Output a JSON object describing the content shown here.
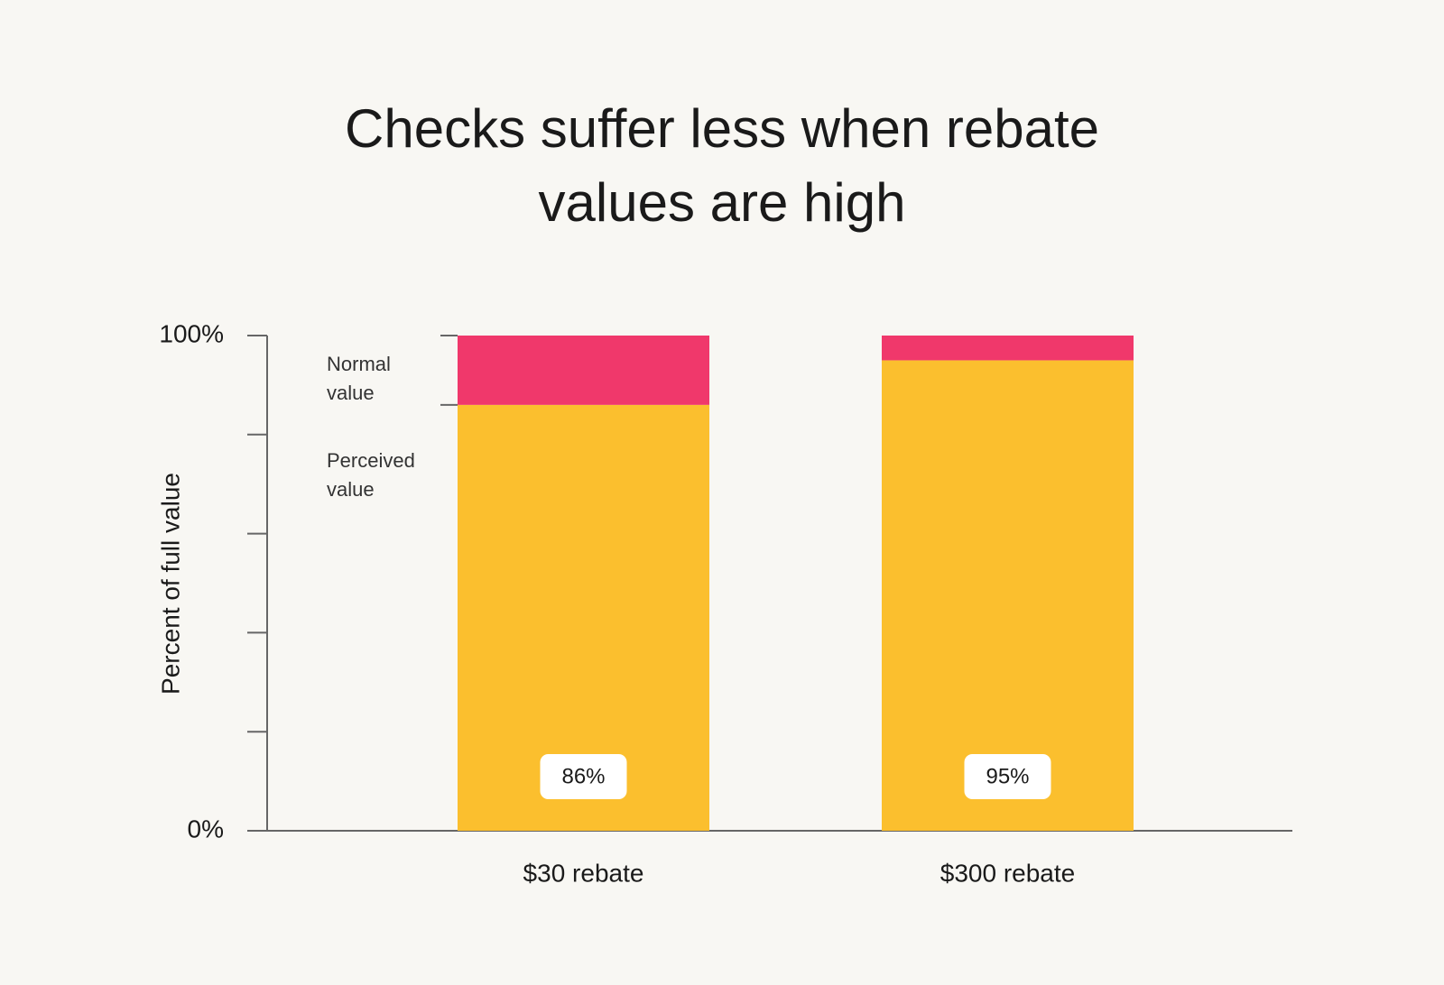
{
  "chart_data": {
    "type": "stacked_bar",
    "title": "Checks suffer less when rebate values are high",
    "y_label": "Percent of full value",
    "categories": [
      "$30 rebate",
      "$300 rebate"
    ],
    "series": [
      {
        "name": "Perceived value",
        "color": "#fbbf2e",
        "values": [
          86,
          95
        ],
        "value_labels": [
          "86%",
          "95%"
        ]
      },
      {
        "name": "Normal value",
        "color": "#f0386b",
        "values": [
          14,
          5
        ]
      }
    ],
    "ylim": [
      0,
      100
    ],
    "yticks": [
      {
        "value": 0,
        "label": "0%"
      },
      {
        "value": 100,
        "label": "100%"
      }
    ],
    "minor_yticks": [
      20,
      40,
      60,
      80
    ]
  }
}
